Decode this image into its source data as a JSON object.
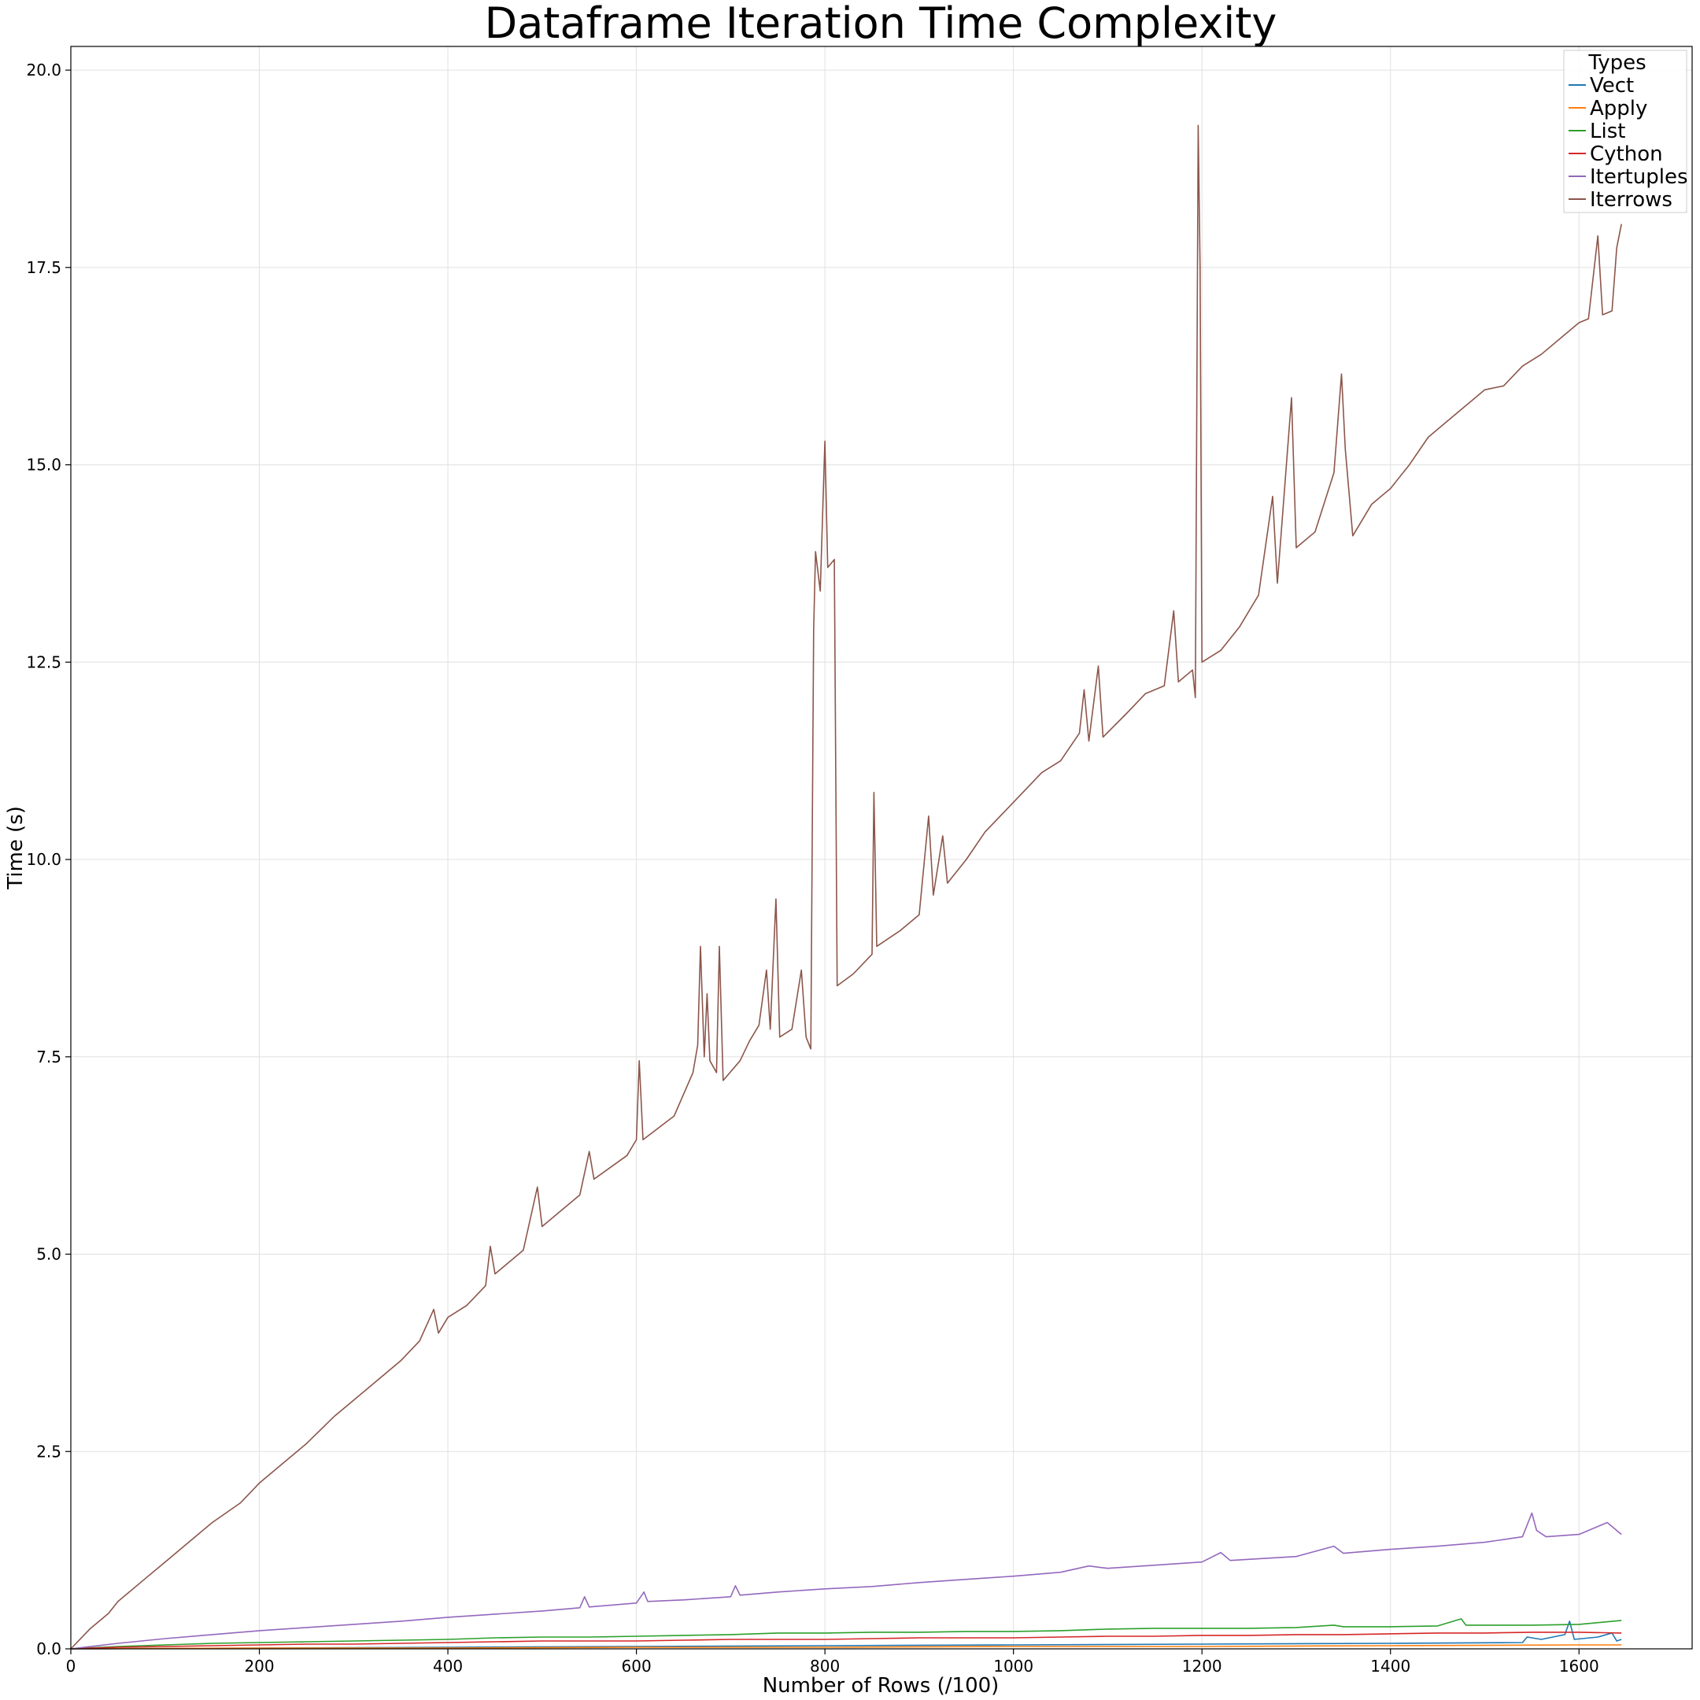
{
  "chart_data": {
    "type": "line",
    "title": "Dataframe Iteration Time Complexity",
    "xlabel": "Number of Rows (/100)",
    "ylabel": "Time (s)",
    "xlim": [
      0,
      1720
    ],
    "ylim": [
      0,
      20.3
    ],
    "x_ticks": [
      0,
      200,
      400,
      600,
      800,
      1000,
      1200,
      1400,
      1600
    ],
    "x_tick_labels": [
      "0",
      "200",
      "400",
      "600",
      "800",
      "1000",
      "1200",
      "1400",
      "1600"
    ],
    "y_ticks": [
      0,
      2.5,
      5,
      7.5,
      10,
      12.5,
      15,
      17.5,
      20
    ],
    "y_tick_labels": [
      "0.0",
      "2.5",
      "5.0",
      "7.5",
      "10.0",
      "12.5",
      "15.0",
      "17.5",
      "20.0"
    ],
    "grid": true,
    "legend": {
      "title": "Types",
      "placement": "top-right"
    },
    "series": [
      {
        "name": "Vect",
        "color": "#1f77b4",
        "points": [
          [
            0,
            0
          ],
          [
            200,
            0.01
          ],
          [
            400,
            0.02
          ],
          [
            600,
            0.03
          ],
          [
            800,
            0.04
          ],
          [
            1000,
            0.05
          ],
          [
            1200,
            0.06
          ],
          [
            1400,
            0.07
          ],
          [
            1540,
            0.08
          ],
          [
            1545,
            0.15
          ],
          [
            1560,
            0.12
          ],
          [
            1585,
            0.18
          ],
          [
            1590,
            0.35
          ],
          [
            1595,
            0.12
          ],
          [
            1620,
            0.15
          ],
          [
            1635,
            0.2
          ],
          [
            1640,
            0.1
          ],
          [
            1645,
            0.12
          ]
        ]
      },
      {
        "name": "Apply",
        "color": "#ff7f0e",
        "points": [
          [
            0,
            0
          ],
          [
            200,
            0.01
          ],
          [
            400,
            0.01
          ],
          [
            600,
            0.02
          ],
          [
            800,
            0.02
          ],
          [
            1000,
            0.03
          ],
          [
            1200,
            0.03
          ],
          [
            1400,
            0.04
          ],
          [
            1600,
            0.05
          ],
          [
            1645,
            0.05
          ]
        ]
      },
      {
        "name": "List",
        "color": "#2ca02c",
        "points": [
          [
            0,
            0
          ],
          [
            50,
            0.03
          ],
          [
            100,
            0.05
          ],
          [
            150,
            0.07
          ],
          [
            200,
            0.08
          ],
          [
            250,
            0.09
          ],
          [
            300,
            0.1
          ],
          [
            350,
            0.11
          ],
          [
            400,
            0.12
          ],
          [
            450,
            0.14
          ],
          [
            500,
            0.15
          ],
          [
            550,
            0.15
          ],
          [
            600,
            0.16
          ],
          [
            650,
            0.17
          ],
          [
            700,
            0.18
          ],
          [
            750,
            0.2
          ],
          [
            800,
            0.2
          ],
          [
            850,
            0.21
          ],
          [
            900,
            0.21
          ],
          [
            950,
            0.22
          ],
          [
            1000,
            0.22
          ],
          [
            1050,
            0.23
          ],
          [
            1100,
            0.25
          ],
          [
            1150,
            0.26
          ],
          [
            1200,
            0.26
          ],
          [
            1250,
            0.26
          ],
          [
            1300,
            0.27
          ],
          [
            1340,
            0.3
          ],
          [
            1350,
            0.28
          ],
          [
            1400,
            0.28
          ],
          [
            1450,
            0.29
          ],
          [
            1475,
            0.38
          ],
          [
            1480,
            0.3
          ],
          [
            1500,
            0.3
          ],
          [
            1550,
            0.3
          ],
          [
            1600,
            0.31
          ],
          [
            1645,
            0.36
          ]
        ]
      },
      {
        "name": "Cython",
        "color": "#d62728",
        "points": [
          [
            0,
            0
          ],
          [
            50,
            0.02
          ],
          [
            100,
            0.03
          ],
          [
            150,
            0.04
          ],
          [
            200,
            0.05
          ],
          [
            250,
            0.06
          ],
          [
            300,
            0.06
          ],
          [
            350,
            0.07
          ],
          [
            400,
            0.08
          ],
          [
            450,
            0.09
          ],
          [
            500,
            0.1
          ],
          [
            550,
            0.1
          ],
          [
            600,
            0.1
          ],
          [
            650,
            0.11
          ],
          [
            700,
            0.12
          ],
          [
            750,
            0.12
          ],
          [
            800,
            0.12
          ],
          [
            850,
            0.13
          ],
          [
            900,
            0.14
          ],
          [
            950,
            0.14
          ],
          [
            1000,
            0.14
          ],
          [
            1050,
            0.15
          ],
          [
            1100,
            0.16
          ],
          [
            1150,
            0.16
          ],
          [
            1200,
            0.17
          ],
          [
            1250,
            0.17
          ],
          [
            1300,
            0.18
          ],
          [
            1350,
            0.18
          ],
          [
            1400,
            0.19
          ],
          [
            1450,
            0.2
          ],
          [
            1500,
            0.2
          ],
          [
            1550,
            0.21
          ],
          [
            1600,
            0.21
          ],
          [
            1645,
            0.2
          ]
        ]
      },
      {
        "name": "Itertuples",
        "color": "#9467bd",
        "points": [
          [
            0,
            0
          ],
          [
            50,
            0.07
          ],
          [
            100,
            0.13
          ],
          [
            150,
            0.18
          ],
          [
            200,
            0.23
          ],
          [
            250,
            0.27
          ],
          [
            300,
            0.31
          ],
          [
            350,
            0.35
          ],
          [
            400,
            0.4
          ],
          [
            450,
            0.44
          ],
          [
            500,
            0.48
          ],
          [
            540,
            0.52
          ],
          [
            545,
            0.66
          ],
          [
            550,
            0.53
          ],
          [
            600,
            0.58
          ],
          [
            608,
            0.72
          ],
          [
            612,
            0.6
          ],
          [
            650,
            0.62
          ],
          [
            700,
            0.66
          ],
          [
            705,
            0.8
          ],
          [
            710,
            0.68
          ],
          [
            750,
            0.72
          ],
          [
            800,
            0.76
          ],
          [
            850,
            0.79
          ],
          [
            900,
            0.84
          ],
          [
            950,
            0.88
          ],
          [
            1000,
            0.92
          ],
          [
            1050,
            0.97
          ],
          [
            1080,
            1.05
          ],
          [
            1100,
            1.02
          ],
          [
            1150,
            1.06
          ],
          [
            1200,
            1.1
          ],
          [
            1220,
            1.22
          ],
          [
            1230,
            1.12
          ],
          [
            1300,
            1.17
          ],
          [
            1340,
            1.3
          ],
          [
            1350,
            1.21
          ],
          [
            1400,
            1.26
          ],
          [
            1450,
            1.3
          ],
          [
            1500,
            1.35
          ],
          [
            1540,
            1.42
          ],
          [
            1550,
            1.72
          ],
          [
            1555,
            1.5
          ],
          [
            1565,
            1.42
          ],
          [
            1600,
            1.45
          ],
          [
            1630,
            1.6
          ],
          [
            1640,
            1.5
          ],
          [
            1645,
            1.45
          ]
        ]
      },
      {
        "name": "Iterrows",
        "color": "#8c564b",
        "points": [
          [
            0,
            0
          ],
          [
            20,
            0.25
          ],
          [
            40,
            0.45
          ],
          [
            50,
            0.6
          ],
          [
            60,
            0.7
          ],
          [
            80,
            0.9
          ],
          [
            100,
            1.1
          ],
          [
            120,
            1.3
          ],
          [
            150,
            1.6
          ],
          [
            180,
            1.85
          ],
          [
            200,
            2.1
          ],
          [
            220,
            2.3
          ],
          [
            250,
            2.6
          ],
          [
            280,
            2.95
          ],
          [
            300,
            3.15
          ],
          [
            320,
            3.35
          ],
          [
            350,
            3.65
          ],
          [
            370,
            3.9
          ],
          [
            385,
            4.3
          ],
          [
            390,
            4.0
          ],
          [
            400,
            4.2
          ],
          [
            420,
            4.35
          ],
          [
            440,
            4.6
          ],
          [
            445,
            5.1
          ],
          [
            450,
            4.75
          ],
          [
            480,
            5.05
          ],
          [
            495,
            5.85
          ],
          [
            500,
            5.35
          ],
          [
            540,
            5.75
          ],
          [
            550,
            6.3
          ],
          [
            555,
            5.95
          ],
          [
            590,
            6.25
          ],
          [
            600,
            6.45
          ],
          [
            603,
            7.45
          ],
          [
            607,
            6.45
          ],
          [
            640,
            6.75
          ],
          [
            660,
            7.3
          ],
          [
            665,
            7.65
          ],
          [
            668,
            8.9
          ],
          [
            672,
            7.5
          ],
          [
            675,
            8.3
          ],
          [
            678,
            7.45
          ],
          [
            685,
            7.3
          ],
          [
            688,
            8.9
          ],
          [
            692,
            7.2
          ],
          [
            710,
            7.45
          ],
          [
            720,
            7.7
          ],
          [
            730,
            7.9
          ],
          [
            738,
            8.6
          ],
          [
            742,
            7.85
          ],
          [
            748,
            9.5
          ],
          [
            752,
            7.75
          ],
          [
            765,
            7.85
          ],
          [
            775,
            8.6
          ],
          [
            780,
            7.75
          ],
          [
            785,
            7.6
          ],
          [
            788,
            12.9
          ],
          [
            790,
            13.9
          ],
          [
            795,
            13.4
          ],
          [
            800,
            15.3
          ],
          [
            803,
            13.7
          ],
          [
            810,
            13.8
          ],
          [
            813,
            8.4
          ],
          [
            830,
            8.55
          ],
          [
            850,
            8.8
          ],
          [
            852,
            10.85
          ],
          [
            855,
            8.9
          ],
          [
            880,
            9.1
          ],
          [
            900,
            9.3
          ],
          [
            910,
            10.55
          ],
          [
            915,
            9.55
          ],
          [
            925,
            10.3
          ],
          [
            930,
            9.7
          ],
          [
            950,
            10.0
          ],
          [
            970,
            10.35
          ],
          [
            990,
            10.6
          ],
          [
            1010,
            10.85
          ],
          [
            1030,
            11.1
          ],
          [
            1050,
            11.25
          ],
          [
            1070,
            11.6
          ],
          [
            1075,
            12.15
          ],
          [
            1080,
            11.5
          ],
          [
            1090,
            12.45
          ],
          [
            1095,
            11.55
          ],
          [
            1120,
            11.85
          ],
          [
            1140,
            12.1
          ],
          [
            1160,
            12.2
          ],
          [
            1170,
            13.15
          ],
          [
            1175,
            12.25
          ],
          [
            1190,
            12.4
          ],
          [
            1193,
            12.05
          ],
          [
            1196,
            19.3
          ],
          [
            1198,
            17.5
          ],
          [
            1200,
            12.5
          ],
          [
            1220,
            12.65
          ],
          [
            1240,
            12.95
          ],
          [
            1260,
            13.35
          ],
          [
            1275,
            14.6
          ],
          [
            1280,
            13.5
          ],
          [
            1295,
            15.85
          ],
          [
            1300,
            13.95
          ],
          [
            1320,
            14.15
          ],
          [
            1340,
            14.9
          ],
          [
            1348,
            16.15
          ],
          [
            1352,
            15.2
          ],
          [
            1360,
            14.1
          ],
          [
            1380,
            14.5
          ],
          [
            1400,
            14.7
          ],
          [
            1420,
            15.0
          ],
          [
            1440,
            15.35
          ],
          [
            1460,
            15.55
          ],
          [
            1480,
            15.75
          ],
          [
            1500,
            15.95
          ],
          [
            1520,
            16.0
          ],
          [
            1540,
            16.25
          ],
          [
            1560,
            16.4
          ],
          [
            1580,
            16.6
          ],
          [
            1600,
            16.8
          ],
          [
            1610,
            16.85
          ],
          [
            1620,
            17.9
          ],
          [
            1625,
            16.9
          ],
          [
            1635,
            16.95
          ],
          [
            1640,
            17.75
          ],
          [
            1645,
            18.05
          ]
        ]
      }
    ]
  }
}
